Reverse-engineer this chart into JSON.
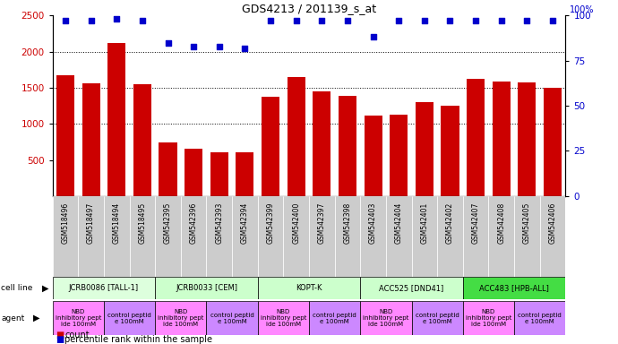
{
  "title": "GDS4213 / 201139_s_at",
  "samples": [
    "GSM518496",
    "GSM518497",
    "GSM518494",
    "GSM518495",
    "GSM542395",
    "GSM542396",
    "GSM542393",
    "GSM542394",
    "GSM542399",
    "GSM542400",
    "GSM542397",
    "GSM542398",
    "GSM542403",
    "GSM542404",
    "GSM542401",
    "GSM542402",
    "GSM542407",
    "GSM542408",
    "GSM542405",
    "GSM542406"
  ],
  "counts": [
    1670,
    1560,
    2120,
    1550,
    740,
    650,
    605,
    610,
    1370,
    1650,
    1450,
    1390,
    1110,
    1130,
    1300,
    1250,
    1620,
    1590,
    1570,
    1500
  ],
  "percentile_ranks": [
    97,
    97,
    98,
    97,
    85,
    83,
    83,
    82,
    97,
    97,
    97,
    97,
    88,
    97,
    97,
    97,
    97,
    97,
    97,
    97
  ],
  "bar_color": "#cc0000",
  "dot_color": "#0000cc",
  "ylim_left": [
    0,
    2500
  ],
  "ylim_right": [
    0,
    100
  ],
  "yticks_left": [
    500,
    1000,
    1500,
    2000,
    2500
  ],
  "yticks_right": [
    0,
    25,
    50,
    75,
    100
  ],
  "cell_lines": [
    {
      "label": "JCRB0086 [TALL-1]",
      "start": 0,
      "end": 4,
      "color": "#ddffdd"
    },
    {
      "label": "JCRB0033 [CEM]",
      "start": 4,
      "end": 8,
      "color": "#ccffcc"
    },
    {
      "label": "KOPT-K",
      "start": 8,
      "end": 12,
      "color": "#ccffcc"
    },
    {
      "label": "ACC525 [DND41]",
      "start": 12,
      "end": 16,
      "color": "#ccffcc"
    },
    {
      "label": "ACC483 [HPB-ALL]",
      "start": 16,
      "end": 20,
      "color": "#44dd44"
    }
  ],
  "agents": [
    {
      "label": "NBD\ninhibitory pept\nide 100mM",
      "start": 0,
      "end": 2,
      "color": "#ff88ff"
    },
    {
      "label": "control peptid\ne 100mM",
      "start": 2,
      "end": 4,
      "color": "#cc88ff"
    },
    {
      "label": "NBD\ninhibitory pept\nide 100mM",
      "start": 4,
      "end": 6,
      "color": "#ff88ff"
    },
    {
      "label": "control peptid\ne 100mM",
      "start": 6,
      "end": 8,
      "color": "#cc88ff"
    },
    {
      "label": "NBD\ninhibitory pept\nide 100mM",
      "start": 8,
      "end": 10,
      "color": "#ff88ff"
    },
    {
      "label": "control peptid\ne 100mM",
      "start": 10,
      "end": 12,
      "color": "#cc88ff"
    },
    {
      "label": "NBD\ninhibitory pept\nide 100mM",
      "start": 12,
      "end": 14,
      "color": "#ff88ff"
    },
    {
      "label": "control peptid\ne 100mM",
      "start": 14,
      "end": 16,
      "color": "#cc88ff"
    },
    {
      "label": "NBD\ninhibitory pept\nide 100mM",
      "start": 16,
      "end": 18,
      "color": "#ff88ff"
    },
    {
      "label": "control peptid\ne 100mM",
      "start": 18,
      "end": 20,
      "color": "#cc88ff"
    }
  ],
  "legend_count_color": "#cc0000",
  "legend_dot_color": "#0000cc",
  "bg_color": "#ffffff",
  "tick_label_color_left": "#cc0000",
  "tick_label_color_right": "#0000cc",
  "sample_box_color": "#cccccc"
}
